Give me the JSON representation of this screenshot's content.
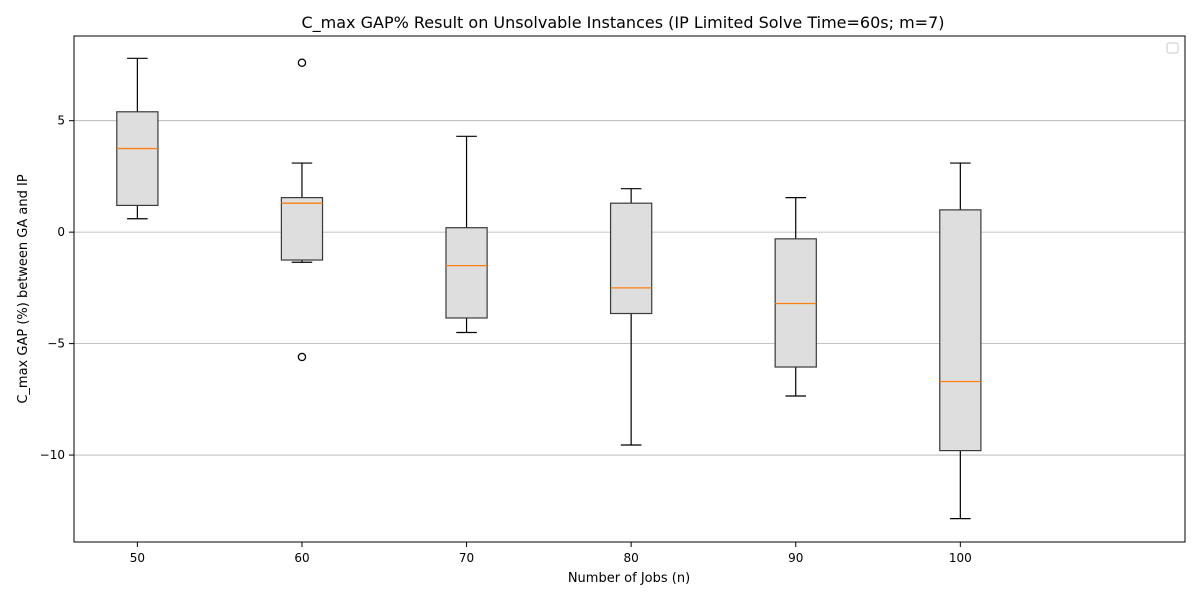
{
  "chart_data": {
    "type": "box",
    "title": "C_max GAP% Result on Unsolvable Instances (IP Limited Solve Time=60s; m=7)",
    "xlabel": "Number of Jobs (n)",
    "ylabel": "C_max GAP (%) between GA and IP",
    "categories": [
      "50",
      "60",
      "70",
      "80",
      "90",
      "100"
    ],
    "y_ticks": [
      5,
      0,
      -5,
      -10
    ],
    "y_tick_labels": [
      "5",
      "0",
      "−5",
      "−10"
    ],
    "ylim": [
      -13.9,
      8.8
    ],
    "grid": "horizontal",
    "legend": "top-right (empty)",
    "boxes": [
      {
        "category": "50",
        "whisker_low": 0.6,
        "q1": 1.2,
        "median": 3.75,
        "q3": 5.4,
        "whisker_high": 7.8,
        "outliers": []
      },
      {
        "category": "60",
        "whisker_low": -1.35,
        "q1": -1.25,
        "median": 1.3,
        "q3": 1.55,
        "whisker_high": 3.1,
        "outliers": [
          7.6,
          -5.6
        ]
      },
      {
        "category": "70",
        "whisker_low": -4.5,
        "q1": -3.85,
        "median": -1.5,
        "q3": 0.2,
        "whisker_high": 4.3,
        "outliers": []
      },
      {
        "category": "80",
        "whisker_low": -9.55,
        "q1": -3.65,
        "median": -2.5,
        "q3": 1.3,
        "whisker_high": 1.95,
        "outliers": []
      },
      {
        "category": "90",
        "whisker_low": -7.35,
        "q1": -6.05,
        "median": -3.2,
        "q3": -0.3,
        "whisker_high": 1.55,
        "outliers": []
      },
      {
        "category": "100",
        "whisker_low": -12.85,
        "q1": -9.8,
        "median": -6.7,
        "q3": 1.0,
        "whisker_high": 3.1,
        "outliers": []
      }
    ],
    "colors": {
      "box_fill": "#dedede",
      "box_edge": "#3a3a3a",
      "median": "#ff7f0e",
      "whisker": "#000000",
      "grid": "#b0b0b0"
    }
  }
}
